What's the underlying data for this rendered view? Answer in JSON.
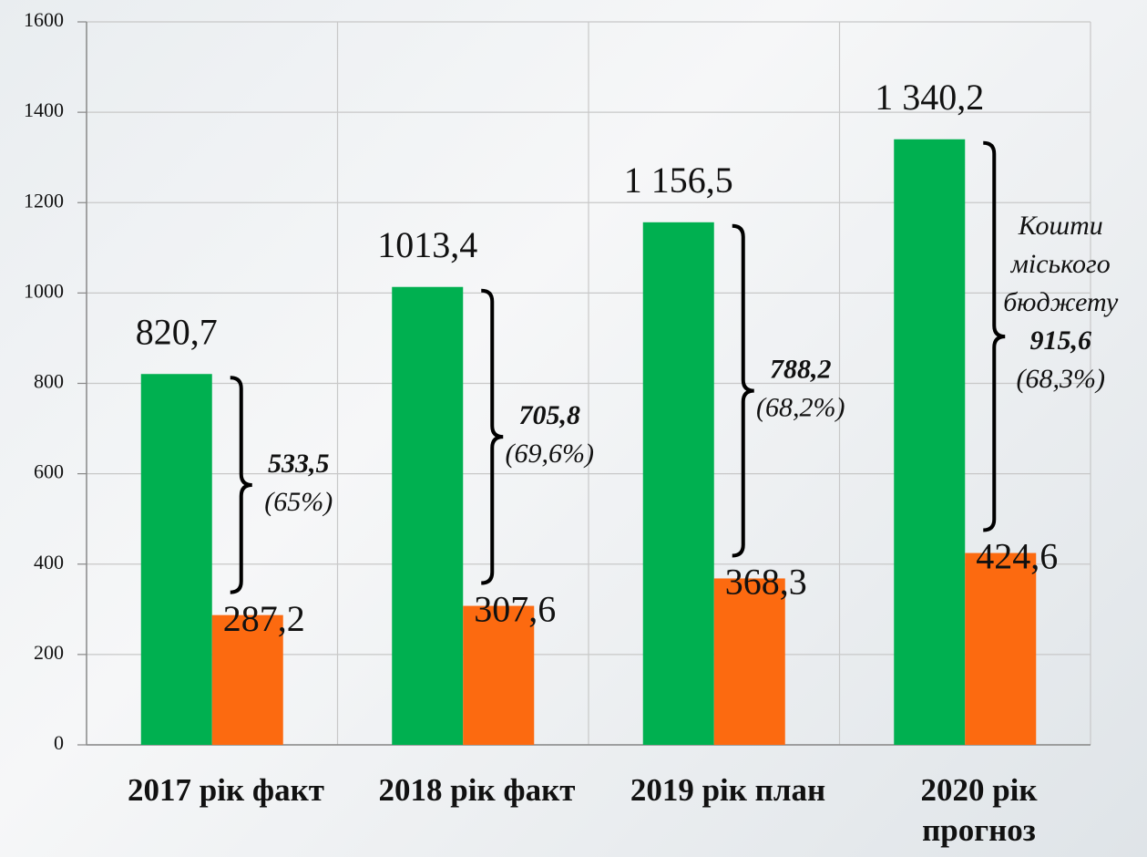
{
  "chart_data": {
    "type": "bar",
    "categories": [
      "2017 рік факт",
      "2018 рік факт",
      "2019 рік план",
      "2020 рік\nпрогноз"
    ],
    "series": [
      {
        "color": "#00b050",
        "values": [
          820.7,
          1013.4,
          1156.5,
          1340.2
        ],
        "value_labels": [
          "820,7",
          "1013,4",
          "1 156,5",
          "1 340,2"
        ]
      },
      {
        "color": "#fc6a10",
        "values": [
          287.2,
          307.6,
          368.3,
          424.6
        ],
        "value_labels": [
          "287,2",
          "307,6",
          "368,3",
          "424,6"
        ]
      }
    ],
    "ylim": [
      0,
      1600
    ],
    "yticks": [
      0,
      200,
      400,
      600,
      800,
      1000,
      1200,
      1400,
      1600
    ],
    "grid": true,
    "annotations": [
      {
        "amount": {
          "value": 533.5,
          "label": "533,5"
        },
        "share": {
          "value": 65,
          "label": "(65%)"
        }
      },
      {
        "amount": {
          "value": 705.8,
          "label": "705,8"
        },
        "share": {
          "value": 69.6,
          "label": "(69,6%)"
        }
      },
      {
        "amount": {
          "value": 788.2,
          "label": "788,2"
        },
        "share": {
          "value": 68.2,
          "label": "(68,2%)"
        }
      },
      {
        "title": "Кошти\nміського\nбюджету",
        "amount": {
          "value": 915.6,
          "label": "915,6"
        },
        "share": {
          "value": 68.3,
          "label": "(68,3%)"
        }
      }
    ]
  }
}
